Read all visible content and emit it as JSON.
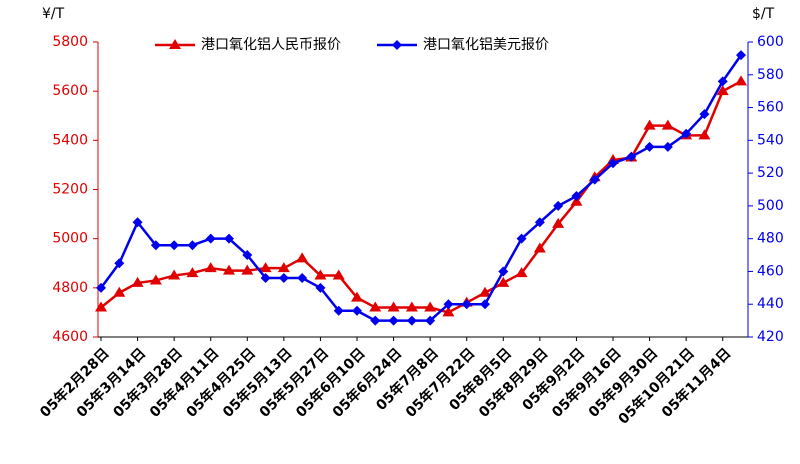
{
  "chart_data": {
    "type": "line",
    "ylabel": "¥/T",
    "y2label": "$/T",
    "categories": [
      "05年2月28日",
      null,
      "05年3月14日",
      null,
      "05年3月28日",
      null,
      "05年4月11日",
      null,
      "05年4月25日",
      null,
      "05年5月13日",
      null,
      "05年5月27日",
      null,
      "05年6月10日",
      null,
      "05年6月24日",
      null,
      "05年7月8日",
      null,
      "05年7月22日",
      null,
      "05年8月5日",
      null,
      "05年8月29日",
      null,
      "05年9月2日",
      null,
      "05年9月16日",
      null,
      "05年9月30日",
      null,
      "05年10月21日",
      null,
      "05年11月4日",
      null
    ],
    "series": [
      {
        "name": "港口氧化铝人民币报价",
        "color": "#e00000",
        "marker": "triangle",
        "values": [
          4720,
          4780,
          4820,
          4830,
          4850,
          4860,
          4880,
          4870,
          4870,
          4880,
          4880,
          4920,
          4850,
          4850,
          4760,
          4720,
          4720,
          4720,
          4720,
          4700,
          4740,
          4780,
          4820,
          4860,
          4960,
          5060,
          5150,
          5250,
          5320,
          5330,
          5460,
          5460,
          5420,
          5420,
          5600,
          5640
        ]
      },
      {
        "name": "港口氧化铝美元报价",
        "color": "#0000ee",
        "marker": "diamond",
        "axis": "y2",
        "values": [
          450,
          465,
          490,
          476,
          476,
          476,
          480,
          480,
          470,
          456,
          456,
          456,
          450,
          436,
          436,
          430,
          430,
          430,
          430,
          440,
          440,
          440,
          460,
          480,
          490,
          500,
          506,
          516,
          526,
          530,
          536,
          536,
          544,
          556,
          576,
          592
        ]
      }
    ],
    "ylim": [
      4600,
      5800
    ],
    "yticks": [
      4600,
      4800,
      5000,
      5200,
      5400,
      5600,
      5800
    ],
    "y2lim": [
      420,
      600
    ],
    "y2ticks": [
      420,
      440,
      460,
      480,
      500,
      520,
      540,
      560,
      580,
      600
    ],
    "legend": "top"
  }
}
